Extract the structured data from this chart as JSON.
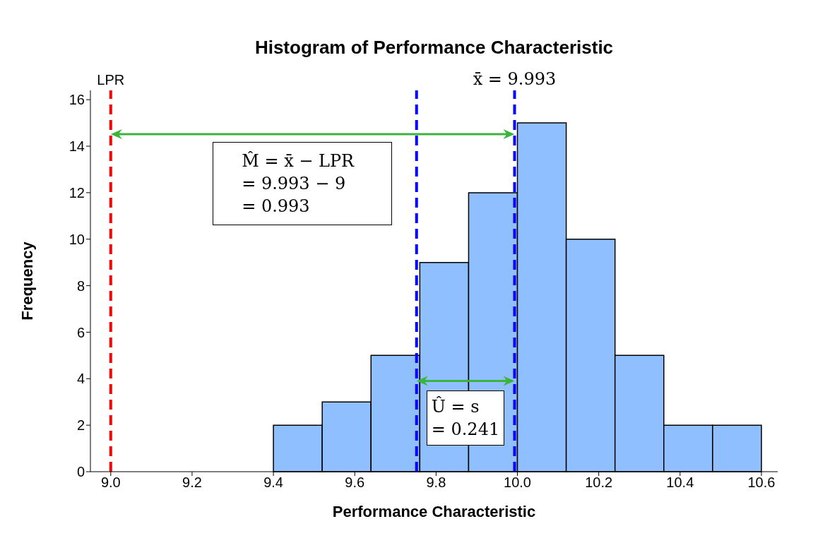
{
  "chart_data": {
    "type": "histogram",
    "title": "Histogram of Performance Characteristic",
    "xlabel": "Performance Characteristic",
    "ylabel": "Frequency",
    "bins": [
      9.4,
      9.52,
      9.64,
      9.76,
      9.88,
      10.0,
      10.12,
      10.24,
      10.36,
      10.48,
      10.6
    ],
    "values": [
      2,
      3,
      5,
      9,
      12,
      15,
      10,
      5,
      2,
      2
    ],
    "color": "#8fbfff",
    "xlim": [
      8.95,
      10.64
    ],
    "xticks": [
      {
        "value": 9,
        "label": "9.0"
      },
      9.2,
      9.4,
      9.6,
      9.8,
      {
        "value": 10,
        "label": "10.0"
      },
      10.2,
      10.4,
      10.6
    ],
    "ylim": [
      0,
      16.4
    ],
    "yticks": [
      0,
      2,
      4,
      6,
      8,
      10,
      12,
      14,
      16
    ],
    "grid": false,
    "ref_lines": [
      {
        "axis": "x",
        "value": 9,
        "label": "LPR",
        "color": "#ff0000",
        "line_style": "dashed"
      },
      {
        "axis": "x",
        "value": 9.993,
        "label": "x̄ = 9.993",
        "color": "#0000ff",
        "line_style": "dashed"
      },
      {
        "axis": "x",
        "value": 9.752,
        "label": null,
        "color": "#0000ff",
        "line_style": "dashed"
      }
    ],
    "annotations": [
      "M̂ = x̄ − LPR",
      "= 9.993 − 9",
      "= 0.993",
      "Û = s",
      "= 0.241"
    ]
  }
}
